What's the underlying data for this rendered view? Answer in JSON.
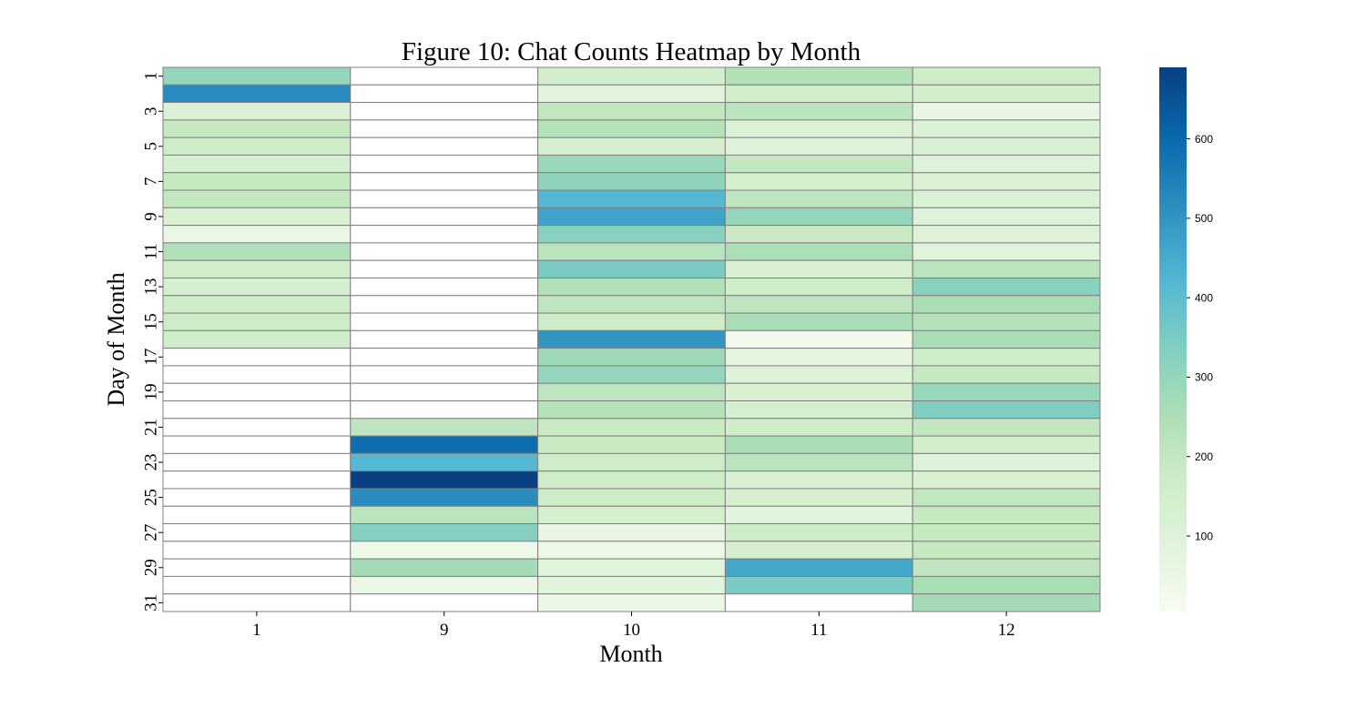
{
  "chart_data": {
    "type": "heatmap",
    "title": "Figure 10: Chat Counts Heatmap by Month",
    "xlabel": "Month",
    "ylabel": "Day of Month",
    "x_categories": [
      "1",
      "9",
      "10",
      "11",
      "12"
    ],
    "y_categories": [
      "1",
      "2",
      "3",
      "4",
      "5",
      "6",
      "7",
      "8",
      "9",
      "10",
      "11",
      "12",
      "13",
      "14",
      "15",
      "16",
      "17",
      "18",
      "19",
      "20",
      "21",
      "22",
      "23",
      "24",
      "25",
      "26",
      "27",
      "28",
      "29",
      "30",
      "31"
    ],
    "y_tick_labels": [
      "1",
      "3",
      "5",
      "7",
      "9",
      "11",
      "13",
      "15",
      "17",
      "19",
      "21",
      "23",
      "25",
      "27",
      "29",
      "31"
    ],
    "colormap": "GnBu",
    "missing_color": "#ffffff",
    "grid_line_color": "#808080",
    "vmin": 5,
    "vmax": 690,
    "colorbar_ticks": [
      100,
      200,
      300,
      400,
      500,
      600
    ],
    "values": [
      [
        300,
        null,
        150,
        240,
        170
      ],
      [
        520,
        null,
        80,
        150,
        150
      ],
      [
        110,
        null,
        200,
        220,
        60
      ],
      [
        190,
        null,
        230,
        110,
        110
      ],
      [
        170,
        null,
        140,
        100,
        120
      ],
      [
        130,
        null,
        290,
        200,
        100
      ],
      [
        190,
        null,
        310,
        140,
        110
      ],
      [
        200,
        null,
        420,
        210,
        110
      ],
      [
        120,
        null,
        470,
        300,
        100
      ],
      [
        55,
        null,
        320,
        180,
        100
      ],
      [
        240,
        null,
        220,
        250,
        90
      ],
      [
        150,
        null,
        350,
        120,
        220
      ],
      [
        130,
        null,
        240,
        160,
        320
      ],
      [
        170,
        null,
        210,
        210,
        260
      ],
      [
        170,
        null,
        170,
        260,
        230
      ],
      [
        160,
        null,
        500,
        20,
        260
      ],
      [
        null,
        null,
        280,
        70,
        170
      ],
      [
        null,
        null,
        300,
        100,
        190
      ],
      [
        null,
        null,
        210,
        120,
        290
      ],
      [
        null,
        null,
        230,
        130,
        340
      ],
      [
        null,
        210,
        180,
        160,
        200
      ],
      [
        null,
        590,
        180,
        260,
        150
      ],
      [
        null,
        420,
        170,
        220,
        100
      ],
      [
        null,
        690,
        160,
        120,
        120
      ],
      [
        null,
        520,
        170,
        130,
        200
      ],
      [
        null,
        220,
        140,
        90,
        190
      ],
      [
        null,
        330,
        60,
        170,
        190
      ],
      [
        null,
        35,
        40,
        130,
        190
      ],
      [
        null,
        270,
        90,
        460,
        210
      ],
      [
        null,
        45,
        90,
        350,
        260
      ],
      [
        null,
        null,
        45,
        null,
        270
      ]
    ]
  }
}
